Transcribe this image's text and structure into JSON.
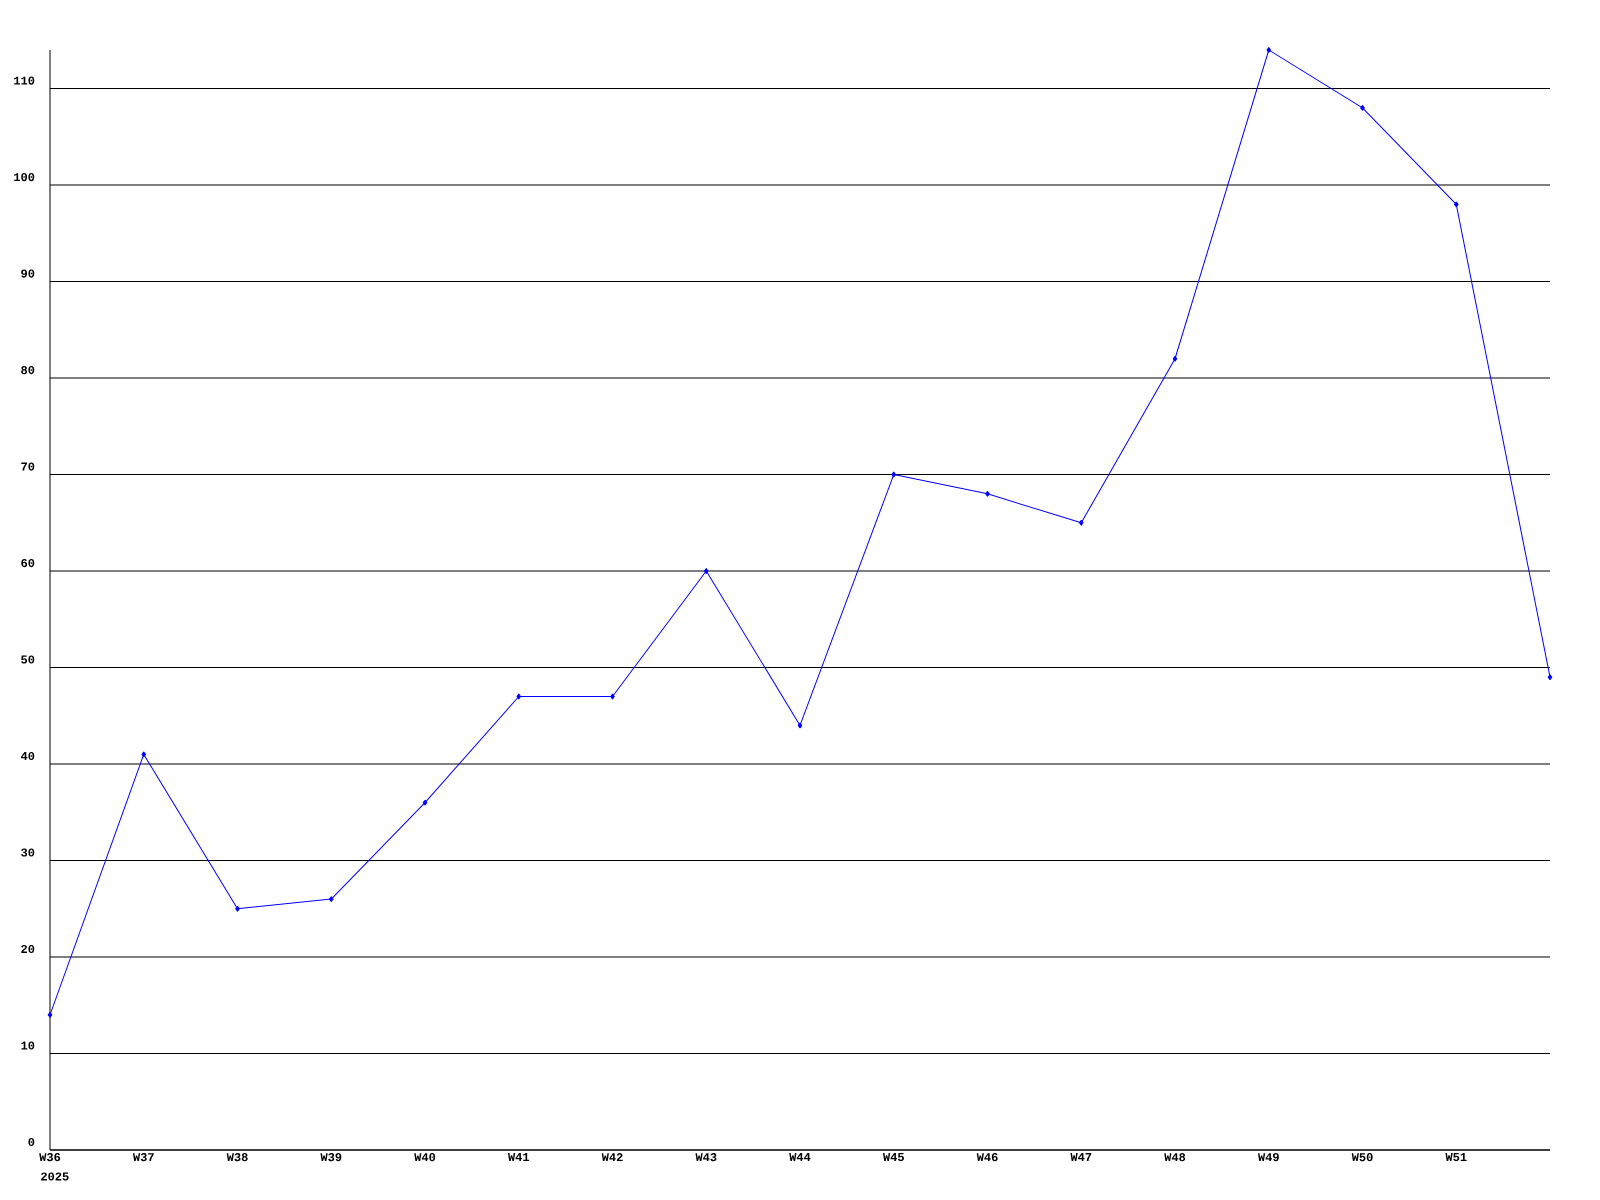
{
  "chart_data": {
    "type": "line",
    "categories": [
      "W36",
      "W37",
      "W38",
      "W39",
      "W40",
      "W41",
      "W42",
      "W43",
      "W44",
      "W45",
      "W46",
      "W47",
      "W48",
      "W49",
      "W50",
      "W51",
      null
    ],
    "values": [
      14,
      41,
      25,
      26,
      36,
      47,
      47,
      60,
      44,
      70,
      68,
      65,
      82,
      114,
      108,
      98,
      49
    ],
    "color": "#0000ff",
    "marker": "diamond",
    "line_style": "solid",
    "ylim": [
      0,
      114
    ],
    "yticks": [
      0,
      10,
      20,
      30,
      40,
      50,
      60,
      70,
      80,
      90,
      100,
      110
    ],
    "grid": "y",
    "annotations": [
      "2025"
    ]
  }
}
